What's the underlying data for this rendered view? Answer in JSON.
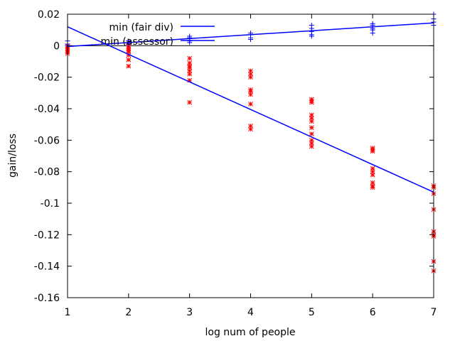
{
  "chart_data": {
    "type": "scatter",
    "title": "",
    "xlabel": "log num of people",
    "ylabel": "gain/loss",
    "xlim": [
      1,
      7
    ],
    "ylim": [
      -0.16,
      0.02
    ],
    "xticks": [
      1,
      2,
      3,
      4,
      5,
      6,
      7
    ],
    "xtick_labels": [
      "1",
      "2",
      "3",
      "4",
      "5",
      "6",
      "7"
    ],
    "yticks": [
      0.02,
      0,
      -0.02,
      -0.04,
      -0.06,
      -0.08,
      -0.1,
      -0.12,
      -0.14,
      -0.16
    ],
    "ytick_labels": [
      "0.02",
      "0",
      "-0.02",
      "-0.04",
      "-0.06",
      "-0.08",
      "-0.1",
      "-0.12",
      "-0.14",
      "-0.16"
    ],
    "grid": false,
    "legend_position": "top-left",
    "zero_line": 0,
    "series": [
      {
        "name": "min (fair div)",
        "color": "#ff0000",
        "marker": "asterisk",
        "points": [
          [
            1,
            0.0
          ],
          [
            1,
            -0.001
          ],
          [
            1,
            -0.002
          ],
          [
            1,
            -0.003
          ],
          [
            1,
            -0.004
          ],
          [
            1,
            -0.005
          ],
          [
            2,
            0.002
          ],
          [
            2,
            0.0
          ],
          [
            2,
            -0.001
          ],
          [
            2,
            -0.002
          ],
          [
            2,
            -0.003
          ],
          [
            2,
            -0.004
          ],
          [
            2,
            -0.006
          ],
          [
            2,
            -0.009
          ],
          [
            2,
            -0.013
          ],
          [
            3,
            -0.008
          ],
          [
            3,
            -0.011
          ],
          [
            3,
            -0.013
          ],
          [
            3,
            -0.014
          ],
          [
            3,
            -0.016
          ],
          [
            3,
            -0.018
          ],
          [
            3,
            -0.022
          ],
          [
            3,
            -0.036
          ],
          [
            4,
            -0.016
          ],
          [
            4,
            -0.018
          ],
          [
            4,
            -0.02
          ],
          [
            4,
            -0.028
          ],
          [
            4,
            -0.029
          ],
          [
            4,
            -0.031
          ],
          [
            4,
            -0.037
          ],
          [
            4,
            -0.051
          ],
          [
            4,
            -0.053
          ],
          [
            5,
            -0.034
          ],
          [
            5,
            -0.035
          ],
          [
            5,
            -0.036
          ],
          [
            5,
            -0.044
          ],
          [
            5,
            -0.046
          ],
          [
            5,
            -0.048
          ],
          [
            5,
            -0.052
          ],
          [
            5,
            -0.056
          ],
          [
            5,
            -0.06
          ],
          [
            5,
            -0.062
          ],
          [
            5,
            -0.064
          ],
          [
            6,
            -0.065
          ],
          [
            6,
            -0.066
          ],
          [
            6,
            -0.067
          ],
          [
            6,
            -0.078
          ],
          [
            6,
            -0.08
          ],
          [
            6,
            -0.082
          ],
          [
            6,
            -0.087
          ],
          [
            6,
            -0.089
          ],
          [
            6,
            -0.09
          ],
          [
            7,
            -0.089
          ],
          [
            7,
            -0.09
          ],
          [
            7,
            -0.094
          ],
          [
            7,
            -0.104
          ],
          [
            7,
            -0.118
          ],
          [
            7,
            -0.12
          ],
          [
            7,
            -0.121
          ],
          [
            7,
            -0.137
          ],
          [
            7,
            -0.143
          ]
        ],
        "fit_line": [
          [
            1,
            0.012
          ],
          [
            7,
            -0.093
          ]
        ]
      },
      {
        "name": "min (assessor)",
        "color": "#0000ff",
        "marker": "plus",
        "points": [
          [
            1,
            0.003
          ],
          [
            1,
            0.001
          ],
          [
            1,
            0.0
          ],
          [
            2,
            0.003
          ],
          [
            2,
            0.002
          ],
          [
            2,
            0.001
          ],
          [
            3,
            0.006
          ],
          [
            3,
            0.005
          ],
          [
            3,
            0.003
          ],
          [
            3,
            0.002
          ],
          [
            4,
            0.008
          ],
          [
            4,
            0.007
          ],
          [
            4,
            0.005
          ],
          [
            4,
            0.004
          ],
          [
            5,
            0.013
          ],
          [
            5,
            0.011
          ],
          [
            5,
            0.009
          ],
          [
            5,
            0.007
          ],
          [
            5,
            0.006
          ],
          [
            6,
            0.014
          ],
          [
            6,
            0.013
          ],
          [
            6,
            0.011
          ],
          [
            6,
            0.01
          ],
          [
            6,
            0.008
          ],
          [
            7,
            0.02
          ],
          [
            7,
            0.017
          ],
          [
            7,
            0.015
          ],
          [
            7,
            0.013
          ]
        ],
        "fit_line": [
          [
            1,
            -0.0005
          ],
          [
            7,
            0.0145
          ]
        ]
      }
    ]
  }
}
